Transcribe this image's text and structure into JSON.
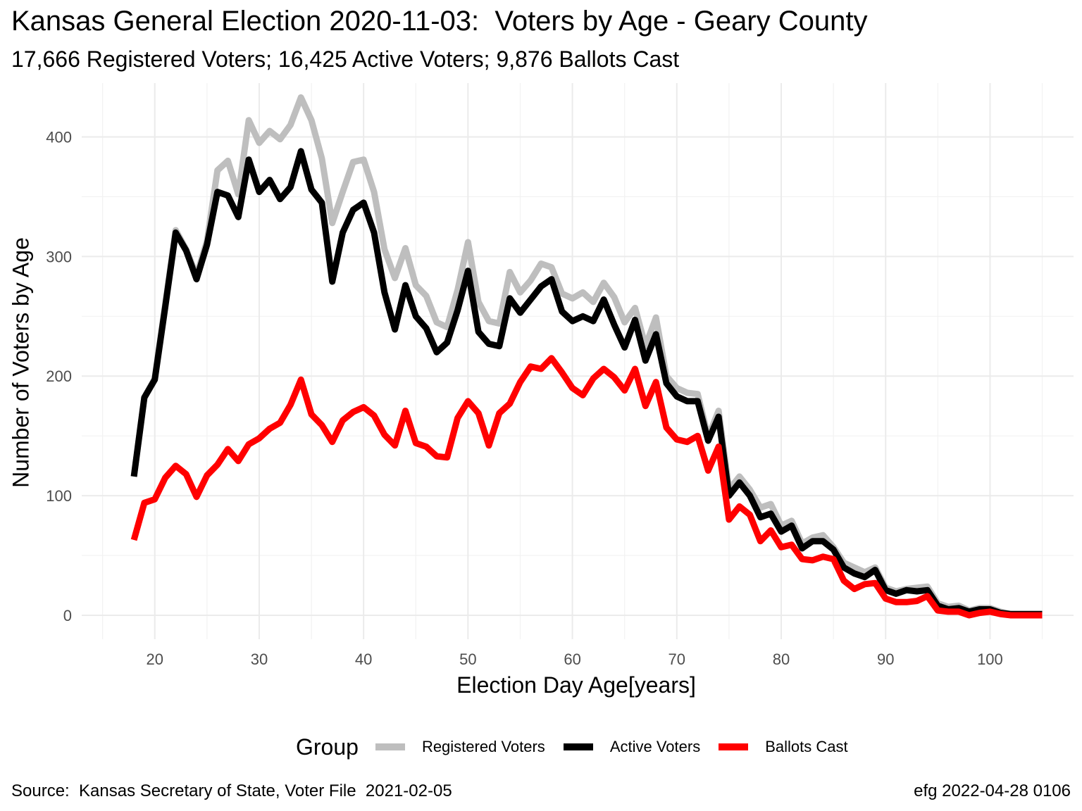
{
  "title": "Kansas General Election 2020-11-03:  Voters by Age - Geary County",
  "subtitle": "17,666 Registered Voters; 16,425 Active Voters; 9,876 Ballots Cast",
  "caption_left": "Source:  Kansas Secretary of State, Voter File  2021-02-05",
  "caption_right": "efg 2022-04-28 0106",
  "legend": {
    "title": "Group",
    "position": "bottom"
  },
  "chart_data": {
    "type": "line",
    "title": "Kansas General Election 2020-11-03:  Voters by Age - Geary County",
    "subtitle": "17,666 Registered Voters; 16,425 Active Voters; 9,876 Ballots Cast",
    "xlabel": "Election Day Age[years]",
    "ylabel": "Number of Voters by Age",
    "xlim": [
      13,
      108
    ],
    "ylim": [
      -20,
      445
    ],
    "xticks": [
      20,
      30,
      40,
      50,
      60,
      70,
      80,
      90,
      100
    ],
    "yticks": [
      0,
      100,
      200,
      300,
      400
    ],
    "grid": true,
    "legend_position": "bottom",
    "x": [
      18,
      19,
      20,
      21,
      22,
      23,
      24,
      25,
      26,
      27,
      28,
      29,
      30,
      31,
      32,
      33,
      34,
      35,
      36,
      37,
      38,
      39,
      40,
      41,
      42,
      43,
      44,
      45,
      46,
      47,
      48,
      49,
      50,
      51,
      52,
      53,
      54,
      55,
      56,
      57,
      58,
      59,
      60,
      61,
      62,
      63,
      64,
      65,
      66,
      67,
      68,
      69,
      70,
      71,
      72,
      73,
      74,
      75,
      76,
      77,
      78,
      79,
      80,
      81,
      82,
      83,
      84,
      85,
      86,
      87,
      88,
      89,
      90,
      91,
      92,
      93,
      94,
      95,
      96,
      97,
      98,
      99,
      100,
      101,
      102,
      103,
      104,
      105
    ],
    "series": [
      {
        "name": "Registered Voters",
        "color": "#bebebe",
        "values": [
          116,
          182,
          198,
          260,
          322,
          306,
          284,
          313,
          372,
          380,
          352,
          414,
          395,
          405,
          398,
          410,
          433,
          414,
          382,
          328,
          354,
          379,
          381,
          354,
          306,
          282,
          307,
          276,
          267,
          245,
          241,
          272,
          312,
          262,
          246,
          244,
          287,
          270,
          280,
          294,
          291,
          269,
          265,
          270,
          262,
          278,
          266,
          245,
          257,
          225,
          249,
          200,
          190,
          186,
          185,
          149,
          171,
          105,
          116,
          105,
          90,
          93,
          75,
          79,
          60,
          65,
          67,
          57,
          44,
          40,
          36,
          40,
          23,
          20,
          22,
          23,
          24,
          10,
          7,
          8,
          4,
          6,
          6,
          3,
          1,
          1,
          1,
          1
        ]
      },
      {
        "name": "Active Voters",
        "color": "#000000",
        "values": [
          116,
          182,
          197,
          258,
          320,
          305,
          281,
          310,
          354,
          351,
          333,
          381,
          354,
          364,
          348,
          358,
          388,
          356,
          345,
          279,
          320,
          339,
          345,
          320,
          270,
          239,
          276,
          250,
          240,
          220,
          228,
          255,
          288,
          237,
          227,
          225,
          265,
          253,
          264,
          275,
          281,
          254,
          246,
          250,
          246,
          264,
          243,
          224,
          247,
          213,
          235,
          194,
          183,
          179,
          179,
          146,
          166,
          100,
          111,
          100,
          82,
          85,
          70,
          75,
          56,
          62,
          62,
          55,
          40,
          35,
          32,
          38,
          21,
          18,
          21,
          20,
          21,
          8,
          5,
          6,
          3,
          5,
          5,
          2,
          1,
          1,
          1,
          1
        ]
      },
      {
        "name": "Ballots Cast",
        "color": "#ff0000",
        "values": [
          63,
          94,
          97,
          115,
          125,
          118,
          99,
          117,
          126,
          139,
          129,
          143,
          148,
          156,
          161,
          176,
          197,
          168,
          159,
          145,
          163,
          170,
          174,
          167,
          151,
          142,
          171,
          144,
          141,
          133,
          132,
          165,
          179,
          169,
          142,
          169,
          177,
          195,
          208,
          206,
          215,
          203,
          190,
          184,
          198,
          206,
          199,
          188,
          206,
          175,
          195,
          157,
          147,
          145,
          150,
          121,
          141,
          80,
          91,
          84,
          62,
          71,
          57,
          59,
          47,
          46,
          49,
          47,
          29,
          22,
          26,
          27,
          14,
          11,
          11,
          12,
          16,
          4,
          3,
          3,
          0,
          2,
          3,
          1,
          0,
          0,
          0,
          0
        ]
      }
    ]
  }
}
